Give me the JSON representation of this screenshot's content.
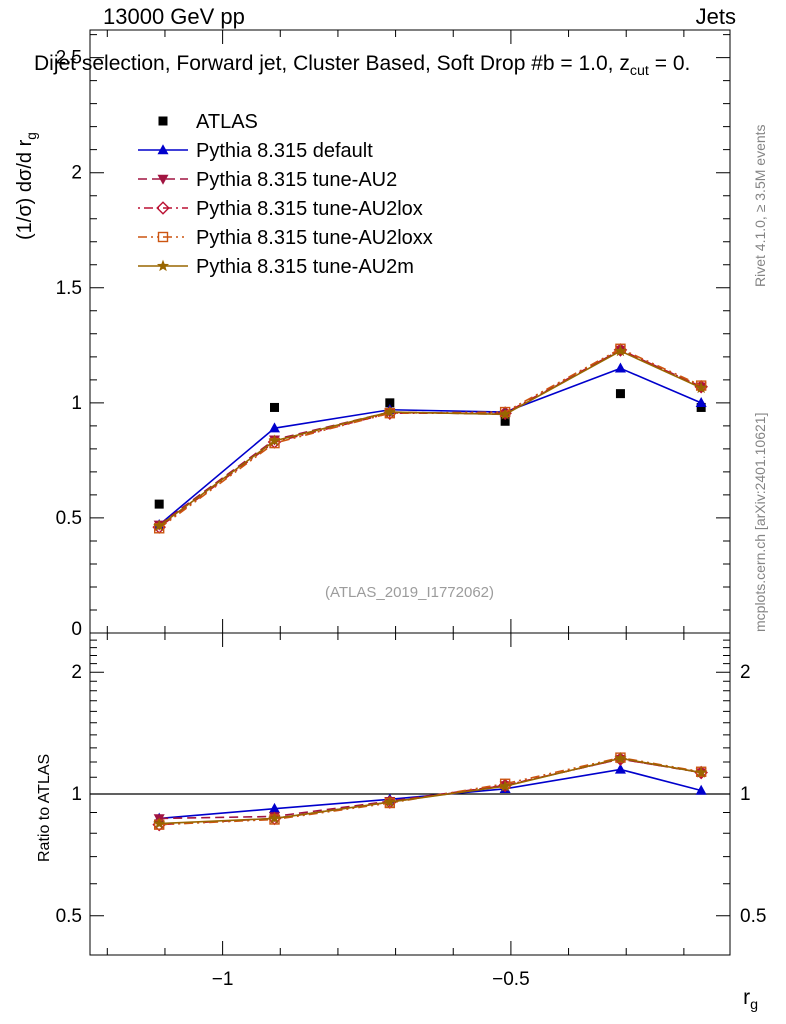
{
  "header": {
    "beam": "13000 GeV pp",
    "process": "Jets"
  },
  "subtitle": {
    "pre": "Dijet selection, Forward jet, Cluster Based, Soft Drop #b = 1.0, z",
    "sub": "cut",
    "post": " = 0."
  },
  "watermark": "(ATLAS_2019_I1772062)",
  "side_notes": {
    "top": "Rivet 4.1.0, ≥ 3.5M events",
    "bottom": "mcplots.cern.ch [arXiv:2401.10621]"
  },
  "axes": {
    "main_ylabel": {
      "pre": "(1/σ) dσ/d r",
      "sub": "g"
    },
    "ratio_ylabel": "Ratio to ATLAS",
    "xlabel": {
      "pre": "r",
      "sub": "g"
    }
  },
  "chart_data": {
    "type": "line",
    "title": "13000 GeV pp — Jets, Dijet selection, Forward jet, Cluster Based, Soft Drop b = 1.0",
    "x": [
      -1.11,
      -0.91,
      -0.71,
      -0.51,
      -0.31,
      -0.17
    ],
    "x_range": [
      -1.23,
      -0.12
    ],
    "main_y_range": [
      0,
      2.62
    ],
    "ratio_y_range": [
      0.4,
      2.5
    ],
    "ratio_y_scale": "log",
    "grid": false,
    "legend_position": "top-left-inside",
    "xticks": {
      "values": [
        -1,
        -0.5
      ],
      "labels": [
        "−1",
        "−0.5"
      ],
      "minor_step": 0.1
    },
    "main_yticks": {
      "values": [
        0,
        0.5,
        1,
        1.5,
        2,
        2.5
      ],
      "labels": [
        "0",
        "0.5",
        "1",
        "1.5",
        "2",
        "2.5"
      ],
      "minor_step": 0.1
    },
    "ratio_yticks": {
      "values": [
        0.5,
        1,
        2
      ],
      "labels": [
        "0.5",
        "1",
        "2"
      ]
    },
    "series": [
      {
        "name": "ATLAS",
        "color": "#000000",
        "marker": "square-filled",
        "line": "none",
        "values": [
          0.56,
          0.98,
          1.0,
          0.92,
          1.04,
          0.98
        ],
        "ratio": null
      },
      {
        "name": "Pythia 8.315 default",
        "color": "#0000cc",
        "marker": "triangle-up-filled",
        "line": "solid",
        "values": [
          0.47,
          0.89,
          0.97,
          0.96,
          1.15,
          1.0
        ],
        "ratio": [
          0.87,
          0.92,
          0.97,
          1.03,
          1.15,
          1.02
        ]
      },
      {
        "name": "Pythia 8.315 tune-AU2",
        "color": "#a11441",
        "marker": "triangle-down-filled",
        "line": "dashed",
        "values": [
          0.47,
          0.84,
          0.96,
          0.95,
          1.23,
          1.07
        ],
        "ratio": [
          0.87,
          0.88,
          0.96,
          1.05,
          1.22,
          1.13
        ]
      },
      {
        "name": "Pythia 8.315 tune-AU2lox",
        "color": "#bb1133",
        "marker": "diamond-open",
        "line": "dashdot",
        "values": [
          0.46,
          0.83,
          0.955,
          0.955,
          1.23,
          1.07
        ],
        "ratio": [
          0.84,
          0.87,
          0.955,
          1.05,
          1.22,
          1.13
        ]
      },
      {
        "name": "Pythia 8.315 tune-AU2loxx",
        "color": "#cc5511",
        "marker": "square-open",
        "line": "dashdotdot",
        "values": [
          0.455,
          0.825,
          0.955,
          0.96,
          1.235,
          1.075
        ],
        "ratio": [
          0.84,
          0.865,
          0.95,
          1.06,
          1.23,
          1.135
        ]
      },
      {
        "name": "Pythia 8.315 tune-AU2m",
        "color": "#996600",
        "marker": "star-filled",
        "line": "solid",
        "values": [
          0.465,
          0.835,
          0.96,
          0.95,
          1.225,
          1.065
        ],
        "ratio": [
          0.845,
          0.87,
          0.955,
          1.045,
          1.225,
          1.13
        ]
      }
    ]
  }
}
